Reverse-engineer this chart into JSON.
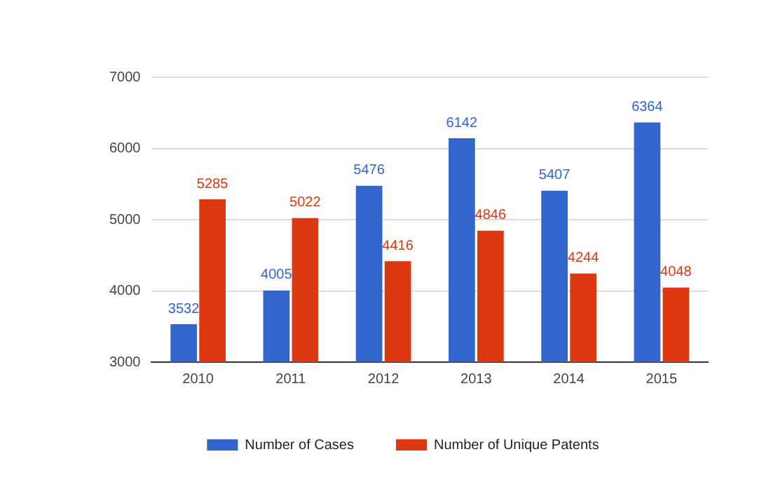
{
  "chart_data": {
    "type": "bar",
    "categories": [
      "2010",
      "2011",
      "2012",
      "2013",
      "2014",
      "2015"
    ],
    "series": [
      {
        "name": "Number of Cases",
        "color": "#3366cc",
        "values": [
          3532,
          4005,
          5476,
          6142,
          5407,
          6364
        ]
      },
      {
        "name": "Number of Unique Patents",
        "color": "#dc3912",
        "values": [
          5285,
          5022,
          4416,
          4846,
          4244,
          4048
        ]
      }
    ],
    "ylim": [
      3000,
      7000
    ],
    "yticks": [
      3000,
      4000,
      5000,
      6000,
      7000
    ],
    "grid": "y",
    "legend": "bottom",
    "data_labels": true
  }
}
